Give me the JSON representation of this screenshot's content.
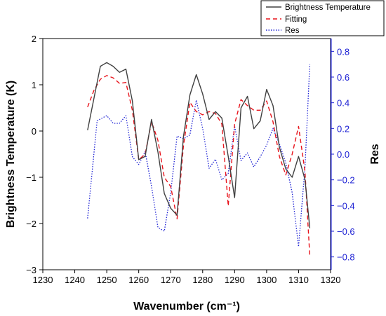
{
  "chart_data": {
    "type": "line",
    "title": "",
    "xlabel": "Wavenumber (cm⁻¹)",
    "ylabel": "Brightness Temperature (K)",
    "y2label": "Res",
    "xlim": [
      1230,
      1320
    ],
    "ylim": [
      -3,
      2
    ],
    "y2lim": [
      -0.9,
      0.9
    ],
    "xticks": [
      1230,
      1240,
      1250,
      1260,
      1270,
      1280,
      1290,
      1300,
      1310,
      1320
    ],
    "yticks": [
      -3,
      -2,
      -1,
      0,
      1,
      2
    ],
    "y2ticks": [
      -0.8,
      -0.6,
      -0.4,
      -0.2,
      0.0,
      0.2,
      0.4,
      0.6,
      0.8
    ],
    "xtick_labels": [
      "1230",
      "1240",
      "1250",
      "1260",
      "1270",
      "1280",
      "1290",
      "1300",
      "1310",
      "1320"
    ],
    "ytick_labels": [
      "−3",
      "−2",
      "−1",
      "0",
      "1",
      "2"
    ],
    "y2tick_labels": [
      "−0.8",
      "−0.6",
      "−0.4",
      "−0.2",
      "0.0",
      "0.2",
      "0.4",
      "0.6",
      "0.8"
    ],
    "legend_position": "top-right",
    "grid": false,
    "series": [
      {
        "name": "Brightness Temperature",
        "axis": "left",
        "color": "#404040",
        "style": "solid",
        "x": [
          1244,
          1248,
          1250,
          1252,
          1254,
          1256,
          1258,
          1260,
          1262,
          1264,
          1266,
          1268,
          1270,
          1272,
          1274,
          1276,
          1278,
          1280,
          1282,
          1284,
          1286,
          1288,
          1290,
          1292,
          1294,
          1296,
          1298,
          1300,
          1302,
          1304,
          1306,
          1308,
          1310,
          1312,
          1313.5
        ],
        "y": [
          0.02,
          1.4,
          1.48,
          1.4,
          1.27,
          1.34,
          0.65,
          -0.62,
          -0.55,
          0.25,
          -0.45,
          -1.35,
          -1.67,
          -1.82,
          -0.12,
          0.78,
          1.22,
          0.8,
          0.25,
          0.42,
          0.28,
          -0.55,
          -1.44,
          0.5,
          0.75,
          0.05,
          0.22,
          0.9,
          0.55,
          -0.35,
          -0.82,
          -1.0,
          -0.55,
          -1.05,
          -2.1
        ]
      },
      {
        "name": "Fitting",
        "axis": "left",
        "color": "#e8141c",
        "style": "dashed",
        "x": [
          1244,
          1246,
          1248,
          1250,
          1252,
          1254,
          1256,
          1258,
          1260,
          1262,
          1264,
          1266,
          1268,
          1270,
          1272,
          1274,
          1276,
          1278,
          1280,
          1282,
          1284,
          1286,
          1288,
          1290,
          1292,
          1294,
          1296,
          1298,
          1300,
          1302,
          1304,
          1306,
          1308,
          1310,
          1312,
          1313.5
        ],
        "y": [
          0.52,
          0.88,
          1.12,
          1.2,
          1.15,
          1.03,
          1.05,
          0.45,
          -0.62,
          -0.5,
          0.2,
          -0.2,
          -1.0,
          -1.2,
          -1.9,
          -0.32,
          0.62,
          0.42,
          0.35,
          0.42,
          0.38,
          0.15,
          -1.62,
          0.15,
          0.68,
          0.55,
          0.45,
          0.45,
          0.65,
          0.2,
          -0.55,
          -0.95,
          -0.5,
          0.1,
          -0.88,
          -2.7
        ]
      },
      {
        "name": "Res",
        "axis": "right",
        "color": "#1f23d4",
        "style": "dotted",
        "x": [
          1244,
          1247,
          1250,
          1252,
          1254,
          1256,
          1258,
          1260,
          1262,
          1264,
          1266,
          1268,
          1270,
          1272,
          1274,
          1276,
          1278,
          1280,
          1282,
          1284,
          1286,
          1288,
          1290,
          1292,
          1294,
          1296,
          1298,
          1300,
          1302,
          1304,
          1306,
          1308,
          1310,
          1312,
          1313.5
        ],
        "y": [
          -0.5,
          0.26,
          0.3,
          0.24,
          0.24,
          0.3,
          -0.02,
          -0.08,
          0.02,
          -0.25,
          -0.57,
          -0.6,
          -0.3,
          0.14,
          0.12,
          0.15,
          0.42,
          0.2,
          -0.11,
          -0.04,
          -0.2,
          -0.15,
          0.22,
          -0.05,
          0.01,
          -0.1,
          -0.02,
          0.07,
          0.2,
          0.08,
          -0.07,
          -0.3,
          -0.72,
          -0.1,
          0.7
        ]
      }
    ]
  }
}
